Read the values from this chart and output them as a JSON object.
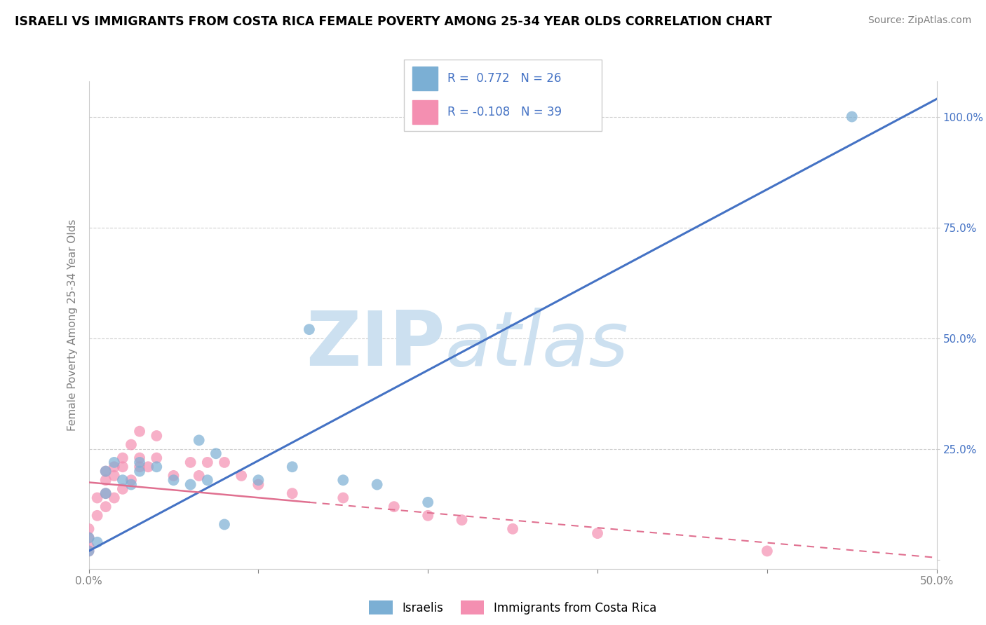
{
  "title": "ISRAELI VS IMMIGRANTS FROM COSTA RICA FEMALE POVERTY AMONG 25-34 YEAR OLDS CORRELATION CHART",
  "source": "Source: ZipAtlas.com",
  "ylabel": "Female Poverty Among 25-34 Year Olds",
  "x_min": 0.0,
  "x_max": 0.5,
  "y_min": -0.02,
  "y_max": 1.08,
  "x_ticks": [
    0.0,
    0.1,
    0.2,
    0.3,
    0.4,
    0.5
  ],
  "y_ticks": [
    0.0,
    0.25,
    0.5,
    0.75,
    1.0
  ],
  "israelis_color": "#7bafd4",
  "costa_rica_color": "#f48fb1",
  "trend_israeli_color": "#4472c4",
  "trend_costa_rica_color": "#e07090",
  "watermark_zip": "ZIP",
  "watermark_atlas": "atlas",
  "watermark_color": "#cce0f0",
  "israelis_x": [
    0.0,
    0.0,
    0.005,
    0.01,
    0.01,
    0.015,
    0.02,
    0.025,
    0.03,
    0.03,
    0.04,
    0.05,
    0.06,
    0.065,
    0.07,
    0.075,
    0.08,
    0.1,
    0.12,
    0.13,
    0.15,
    0.17,
    0.2,
    0.45
  ],
  "israelis_y": [
    0.02,
    0.05,
    0.04,
    0.15,
    0.2,
    0.22,
    0.18,
    0.17,
    0.2,
    0.22,
    0.21,
    0.18,
    0.17,
    0.27,
    0.18,
    0.24,
    0.08,
    0.18,
    0.21,
    0.52,
    0.18,
    0.17,
    0.13,
    1.0
  ],
  "costa_rica_x": [
    0.0,
    0.0,
    0.0,
    0.0,
    0.005,
    0.005,
    0.01,
    0.01,
    0.01,
    0.01,
    0.015,
    0.015,
    0.015,
    0.02,
    0.02,
    0.02,
    0.025,
    0.025,
    0.03,
    0.03,
    0.03,
    0.035,
    0.04,
    0.04,
    0.05,
    0.06,
    0.065,
    0.07,
    0.08,
    0.09,
    0.1,
    0.12,
    0.15,
    0.18,
    0.2,
    0.22,
    0.25,
    0.3,
    0.4
  ],
  "costa_rica_y": [
    0.02,
    0.03,
    0.05,
    0.07,
    0.1,
    0.14,
    0.12,
    0.15,
    0.18,
    0.2,
    0.14,
    0.19,
    0.21,
    0.16,
    0.21,
    0.23,
    0.18,
    0.26,
    0.21,
    0.23,
    0.29,
    0.21,
    0.23,
    0.28,
    0.19,
    0.22,
    0.19,
    0.22,
    0.22,
    0.19,
    0.17,
    0.15,
    0.14,
    0.12,
    0.1,
    0.09,
    0.07,
    0.06,
    0.02
  ],
  "background_color": "#ffffff",
  "grid_color": "#d0d0d0",
  "trend_isr_x0": 0.0,
  "trend_isr_y0": 0.02,
  "trend_isr_x1": 0.5,
  "trend_isr_y1": 1.04,
  "trend_cr_solid_x0": 0.0,
  "trend_cr_solid_y0": 0.175,
  "trend_cr_solid_x1": 0.13,
  "trend_cr_solid_y1": 0.13,
  "trend_cr_dash_x0": 0.13,
  "trend_cr_dash_y0": 0.13,
  "trend_cr_dash_x1": 0.5,
  "trend_cr_dash_y1": 0.005
}
